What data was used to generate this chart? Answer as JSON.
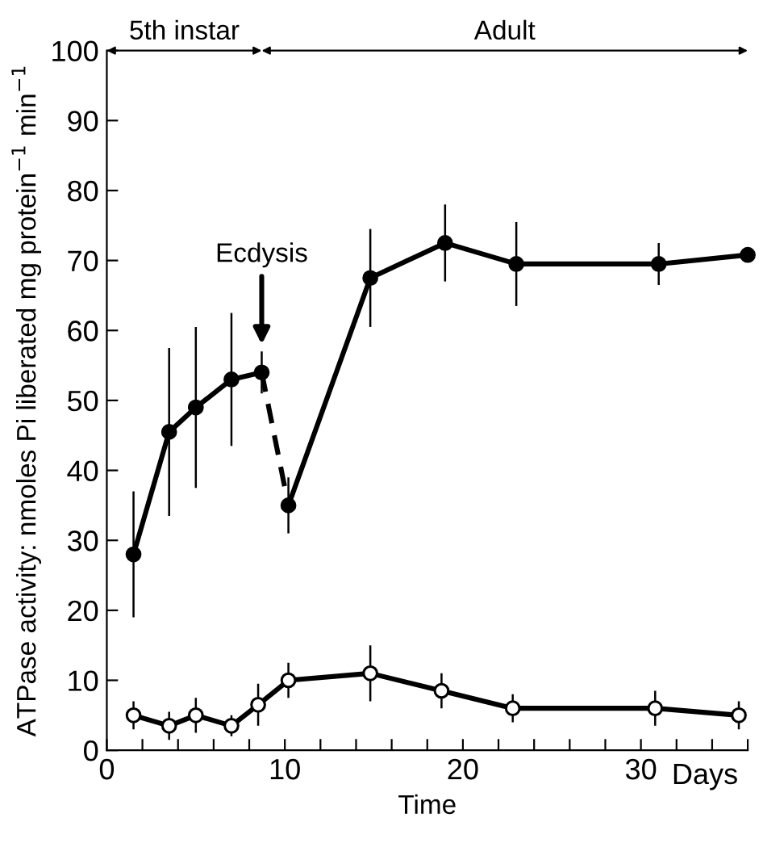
{
  "chart_data": {
    "type": "line",
    "xlabel": "Time",
    "ylabel": "ATPase activity: nmoles Pi liberated mg protein$^{−1}$ min$^{−1}$",
    "series": [
      {
        "color": "#000000",
        "x": [
          1.5,
          3.5,
          5,
          7,
          8.7
        ],
        "values": [
          28,
          45.5,
          49,
          53,
          54
        ],
        "errors": [
          9,
          12,
          11.5,
          9.5,
          3
        ],
        "line_style": "solid",
        "marker": "circle"
      },
      {
        "color": "#000000",
        "x": [
          8.7,
          10.2
        ],
        "values": [
          54,
          35
        ],
        "line_style": "dashed"
      },
      {
        "color": "#000000",
        "x": [
          10.2,
          14.8,
          19,
          23,
          31,
          36
        ],
        "values": [
          35,
          67.5,
          72.5,
          69.5,
          69.5,
          70.8
        ],
        "errors": [
          4,
          7,
          5.5,
          6,
          3,
          null
        ],
        "line_style": "solid",
        "marker": "circle"
      },
      {
        "color": "#000000",
        "colors": [
          "#ffffff",
          "#ffffff",
          "#ffffff",
          "#ffffff",
          "#ffffff",
          "#ffffff",
          "#ffffff",
          "#ffffff",
          "#ffffff",
          "#ffffff",
          "#ffffff"
        ],
        "x": [
          1.5,
          3.5,
          5,
          7,
          8.5,
          10.2,
          14.8,
          18.8,
          22.8,
          30.8,
          35.5
        ],
        "values": [
          5,
          3.5,
          5,
          3.5,
          6.5,
          10,
          11,
          8.5,
          6,
          6,
          5
        ],
        "errors": [
          2,
          2,
          2.5,
          1.5,
          3,
          2.5,
          4,
          2.5,
          2,
          2.5,
          2
        ],
        "line_style": "solid",
        "marker": "circle"
      }
    ],
    "xlim": [
      0,
      36
    ],
    "ylim": [
      0,
      100
    ],
    "xticks": [
      0,
      {
        "value": 2,
        "label": null
      },
      {
        "value": 4,
        "label": null
      },
      {
        "value": 6,
        "label": null
      },
      {
        "value": 8,
        "label": null
      },
      10,
      {
        "value": 12,
        "label": null
      },
      {
        "value": 14,
        "label": null
      },
      {
        "value": 16,
        "label": null
      },
      {
        "value": 18,
        "label": null
      },
      20,
      {
        "value": 22,
        "label": null
      },
      {
        "value": 24,
        "label": null
      },
      {
        "value": 26,
        "label": null
      },
      {
        "value": 28,
        "label": null
      },
      30,
      {
        "value": 32,
        "label": null
      },
      {
        "value": 34,
        "label": null
      },
      {
        "value": 36,
        "label": null
      }
    ],
    "yticks": [
      0,
      10,
      20,
      30,
      40,
      50,
      60,
      70,
      80,
      90,
      100
    ],
    "annotations": [
      "5th instar",
      "Adult",
      {
        "text": "Ecdysis",
        "x": 8.7,
        "y": 58
      },
      "Days"
    ],
    "grid": false
  }
}
